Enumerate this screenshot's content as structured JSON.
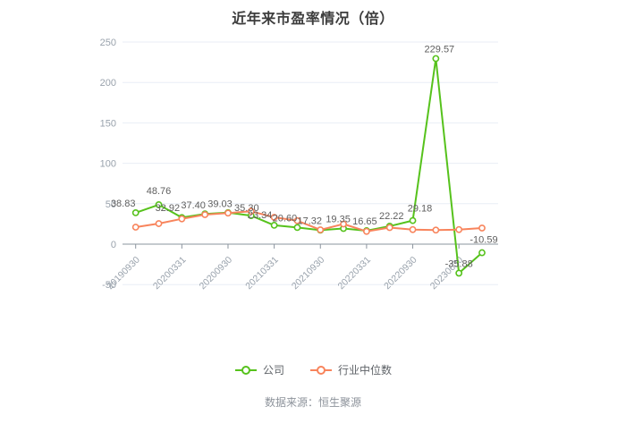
{
  "title": "近年来市盈率情况（倍）",
  "source": "数据来源：恒生聚源",
  "legend": {
    "company": "公司",
    "industry": "行业中位数"
  },
  "colors": {
    "company": "#56c21c",
    "industry": "#f8845c",
    "grid_line": "#e9eef5",
    "axis_line": "#8b949e",
    "axis_text": "#99a2ac",
    "value_label": "#5e5e5e",
    "title_text": "#3d3d3d",
    "legend_text": "#5f6368",
    "source_text": "#8d939b",
    "background": "#ffffff"
  },
  "chart_data": {
    "type": "line",
    "title": "近年来市盈率情况（倍）",
    "ylim": [
      -50,
      250
    ],
    "y_ticks": [
      250,
      200,
      150,
      100,
      50,
      0,
      -50
    ],
    "grid": true,
    "legend_position": "bottom",
    "point_count": 16,
    "x_tick_labels": [
      "20190930",
      "20200331",
      "20200930",
      "20210331",
      "20210930",
      "20220331",
      "20220930",
      "20230630"
    ],
    "x_tick_point_indices": [
      0,
      2,
      4,
      6,
      8,
      10,
      12,
      14
    ],
    "series": [
      {
        "name": "公司",
        "color": "#56c21c",
        "values": [
          38.83,
          48.76,
          32.92,
          37.4,
          39.03,
          35.3,
          23.34,
          20.6,
          17.32,
          19.35,
          16.65,
          22.22,
          29.18,
          229.57,
          -35.88,
          -10.59
        ],
        "point_labels": [
          "38.83",
          "48.76",
          "32.92",
          "37.40",
          "39.03",
          "35.30",
          "23.34",
          "20.60",
          "17.32",
          "19.35",
          "16.65",
          "22.22",
          "29.18",
          "229.57",
          "-35.88",
          "-10.59"
        ]
      },
      {
        "name": "行业中位数",
        "color": "#f8845c",
        "values": [
          21.0,
          25.4,
          31.3,
          36.5,
          38.4,
          40.6,
          33.2,
          29.0,
          17.7,
          24.9,
          15.8,
          20.5,
          18.0,
          17.4,
          18.0,
          19.9
        ]
      }
    ]
  }
}
